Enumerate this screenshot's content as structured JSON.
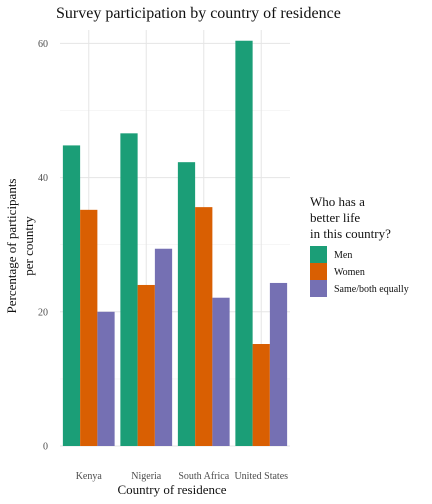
{
  "chart_data": {
    "type": "bar",
    "title": "Survey participation by country of residence",
    "xlabel": "Country of residence",
    "ylabel_lines": [
      "Percentage of participants",
      "per country"
    ],
    "categories": [
      "Kenya",
      "Nigeria",
      "South Africa",
      "United States"
    ],
    "ylim": [
      0,
      62
    ],
    "yticks": [
      0,
      20,
      40,
      60
    ],
    "grid": true,
    "legend": {
      "title_lines": [
        "Who has a",
        "better life",
        "in this country?"
      ],
      "position": "right"
    },
    "series": [
      {
        "name": "Men",
        "color": "#1b9e77",
        "values": [
          44.8,
          46.6,
          42.3,
          60.4
        ]
      },
      {
        "name": "Women",
        "color": "#d95f02",
        "values": [
          35.2,
          24.0,
          35.6,
          15.2
        ]
      },
      {
        "name": "Same/both equally",
        "color": "#7570b3",
        "values": [
          20.0,
          29.4,
          22.1,
          24.3
        ]
      }
    ]
  }
}
